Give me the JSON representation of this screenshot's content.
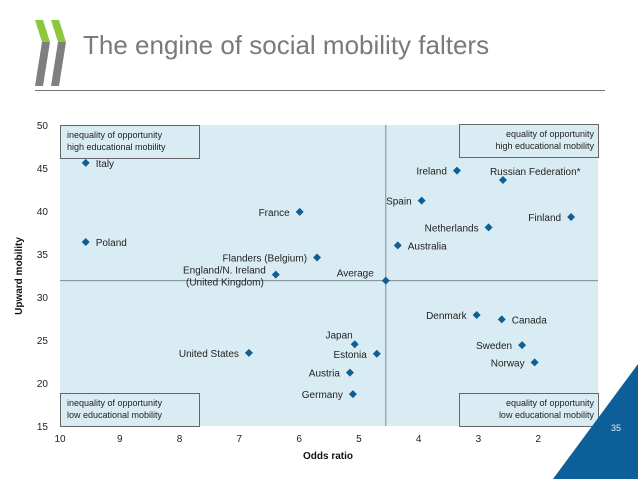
{
  "header": {
    "title": "The engine of social mobility falters",
    "logo_icon": "oecd-chevrons-logo",
    "colors": {
      "logo_green": "#8dc63f",
      "logo_gray": "#7f7f7f"
    }
  },
  "page_number": "35",
  "colors": {
    "marker": "#0f5f94",
    "plot_bg": "#daecf3",
    "corner_triangle": "#0d5f99"
  },
  "chart_data": {
    "type": "scatter",
    "title": "The engine of social mobility falters",
    "xlabel": "Odds ratio",
    "ylabel": "Upward mobility",
    "xlim": [
      10,
      1
    ],
    "x_reversed": true,
    "ylim": [
      15,
      50
    ],
    "xticks": [
      "10",
      "9",
      "8",
      "7",
      "6",
      "5",
      "4",
      "3",
      "2",
      "1"
    ],
    "yticks": [
      "15",
      "20",
      "25",
      "30",
      "35",
      "40",
      "45",
      "50"
    ],
    "grid": false,
    "reference_lines": {
      "x": 4.55,
      "y": 31.9,
      "label": "Average"
    },
    "quadrant_labels": [
      {
        "position": "top-left",
        "lines": [
          "inequality of opportunity",
          "high educational mobility"
        ]
      },
      {
        "position": "top-right",
        "lines": [
          "equality of opportunity",
          "high educational mobility"
        ]
      },
      {
        "position": "bottom-left",
        "lines": [
          "inequality of opportunity",
          "low educational mobility"
        ]
      },
      {
        "position": "bottom-right",
        "lines": [
          "equality of opportunity",
          "low educational mobility"
        ]
      }
    ],
    "points": [
      {
        "label": "Italy",
        "x": 9.57,
        "y": 45.6,
        "label_side": "right"
      },
      {
        "label": "Poland",
        "x": 9.57,
        "y": 36.4,
        "label_side": "right"
      },
      {
        "label": "France",
        "x": 5.99,
        "y": 39.9,
        "label_side": "left"
      },
      {
        "label": "Flanders (Belgium)",
        "x": 5.7,
        "y": 34.6,
        "label_side": "left"
      },
      {
        "label": "England/N. Ireland",
        "label2": "(United Kingdom)",
        "x": 6.39,
        "y": 32.6,
        "label_side": "left"
      },
      {
        "label": "Average",
        "x": 4.55,
        "y": 31.9,
        "label_side": "left-up"
      },
      {
        "label": "Ireland",
        "x": 3.36,
        "y": 44.7,
        "label_side": "left"
      },
      {
        "label": "Russian Federation*",
        "x": 2.59,
        "y": 43.6,
        "label_side": "above-right"
      },
      {
        "label": "Spain",
        "x": 3.95,
        "y": 41.2,
        "label_side": "left"
      },
      {
        "label": "Finland",
        "x": 1.45,
        "y": 39.3,
        "label_side": "left"
      },
      {
        "label": "Netherlands",
        "x": 2.83,
        "y": 38.1,
        "label_side": "left"
      },
      {
        "label": "Australia",
        "x": 4.35,
        "y": 36.0,
        "label_side": "right"
      },
      {
        "label": "Denmark",
        "x": 3.03,
        "y": 27.9,
        "label_side": "left"
      },
      {
        "label": "Canada",
        "x": 2.61,
        "y": 27.4,
        "label_side": "right"
      },
      {
        "label": "Sweden",
        "x": 2.27,
        "y": 24.4,
        "label_side": "left"
      },
      {
        "label": "Norway",
        "x": 2.06,
        "y": 22.4,
        "label_side": "left"
      },
      {
        "label": "Japan",
        "x": 5.07,
        "y": 24.5,
        "label_side": "above-left"
      },
      {
        "label": "Estonia",
        "x": 4.7,
        "y": 23.4,
        "label_side": "left"
      },
      {
        "label": "Austria",
        "x": 5.15,
        "y": 21.2,
        "label_side": "left"
      },
      {
        "label": "Germany",
        "x": 5.1,
        "y": 18.7,
        "label_side": "left"
      },
      {
        "label": "United States",
        "x": 6.84,
        "y": 23.5,
        "label_side": "left"
      }
    ]
  }
}
